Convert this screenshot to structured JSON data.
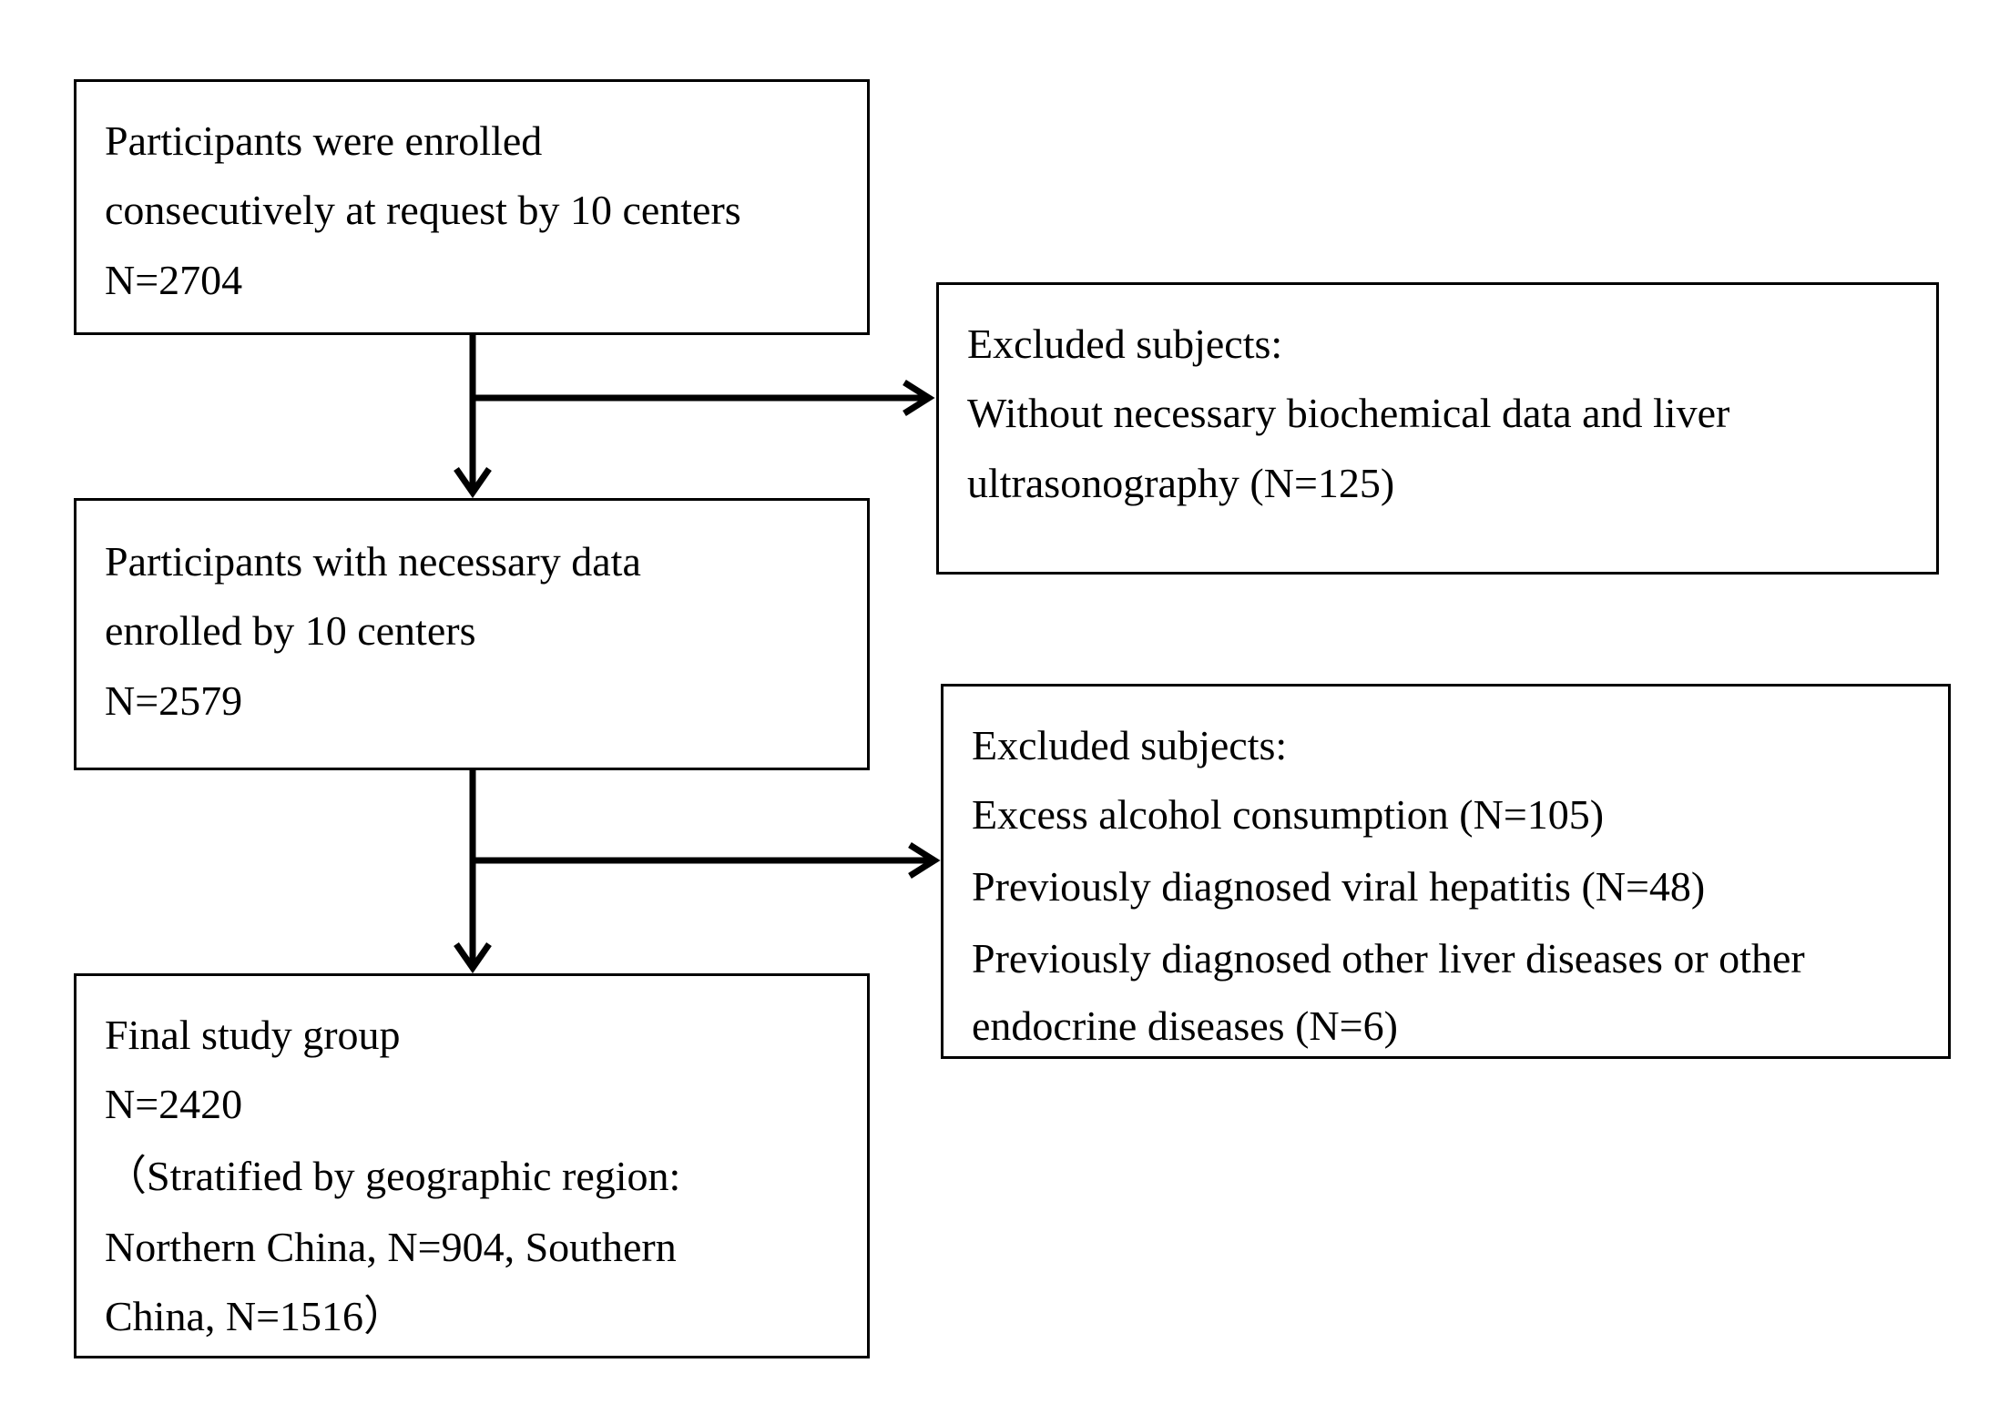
{
  "boxes": {
    "enrolled": {
      "lines": [
        "Participants were enrolled",
        "consecutively at request by 10 centers",
        "N=2704"
      ]
    },
    "exclusion_1": {
      "lines": [
        "Excluded subjects:",
        "Without necessary biochemical data and liver",
        "ultrasonography (N=125)"
      ]
    },
    "with_data": {
      "lines": [
        "Participants with necessary data",
        "enrolled by 10 centers",
        "N=2579"
      ]
    },
    "exclusion_2": {
      "lines": [
        "Excluded subjects:",
        "Excess alcohol consumption (N=105)",
        "Previously diagnosed viral hepatitis (N=48)",
        "Previously diagnosed other liver diseases or other",
        "endocrine diseases (N=6)"
      ]
    },
    "final": {
      "lines": [
        "Final study group",
        "N=2420",
        "（Stratified by geographic region:",
        "Northern China, N=904, Southern",
        "China, N=1516）"
      ]
    }
  },
  "colors": {
    "stroke": "#000000",
    "background": "#ffffff"
  }
}
